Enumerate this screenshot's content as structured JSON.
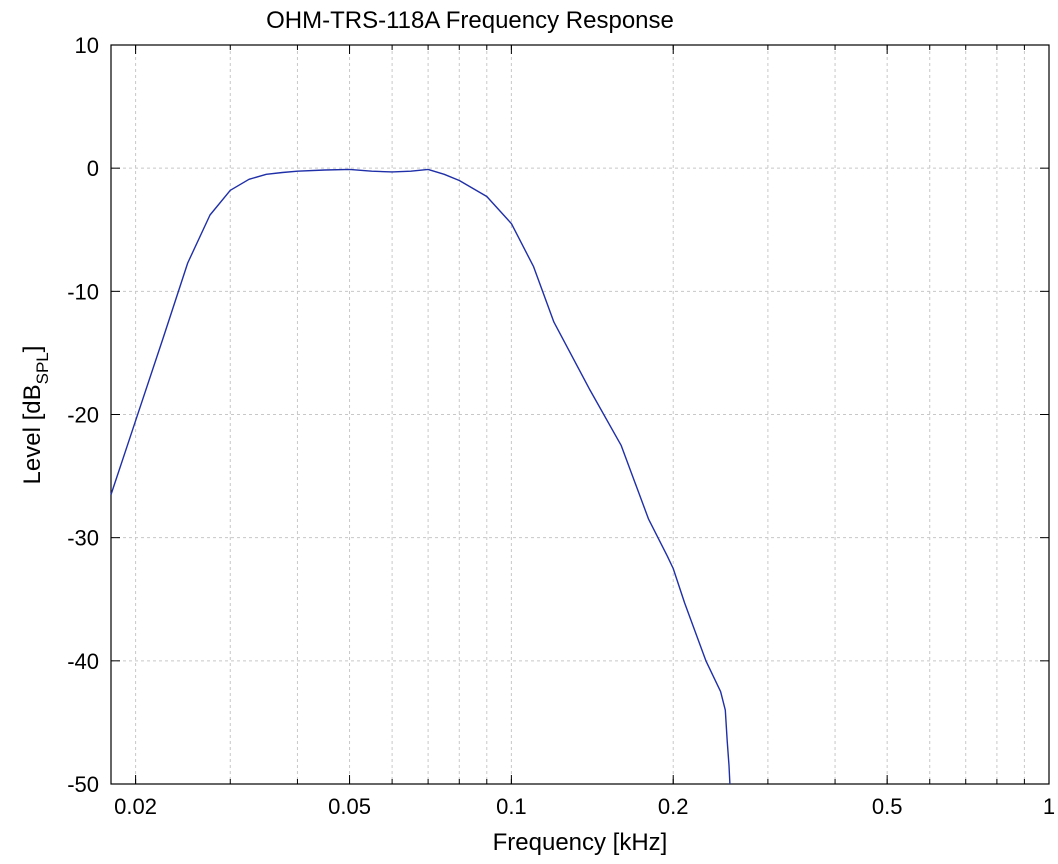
{
  "chart_data": {
    "type": "line",
    "title": "OHM-TRS-118A Frequency Response",
    "xlabel": "Frequency [kHz]",
    "ylabel": {
      "main": "Level [dB",
      "sub": "SPL",
      "end": "]"
    },
    "x_scale": "log",
    "xlim": [
      0.018,
      1
    ],
    "ylim": [
      -50,
      10
    ],
    "x_ticks": [
      0.02,
      0.05,
      0.1,
      0.2,
      0.5,
      1
    ],
    "x_tick_labels": [
      "0.02",
      "0.05",
      "0.1",
      "0.2",
      "0.5",
      "1"
    ],
    "y_ticks": [
      10,
      0,
      -10,
      -20,
      -30,
      -40,
      -50
    ],
    "y_tick_labels": [
      "10",
      "0",
      "-10",
      "-20",
      "-30",
      "-40",
      "-50"
    ],
    "grid": true,
    "line_color": "#1f2fa8",
    "grid_color": "#c8c8c8",
    "series": [
      {
        "x": [
          0.018,
          0.02,
          0.0225,
          0.025,
          0.0275,
          0.03,
          0.0325,
          0.035,
          0.0375,
          0.04,
          0.045,
          0.05,
          0.055,
          0.06,
          0.065,
          0.07,
          0.075,
          0.08,
          0.09,
          0.1,
          0.11,
          0.12,
          0.14,
          0.16,
          0.18,
          0.195,
          0.2,
          0.21,
          0.23,
          0.245,
          0.25,
          0.252,
          0.254,
          0.255
        ],
        "y": [
          -26.5,
          -20.5,
          -13.8,
          -7.7,
          -3.8,
          -1.8,
          -0.9,
          -0.5,
          -0.35,
          -0.25,
          -0.15,
          -0.1,
          -0.25,
          -0.3,
          -0.25,
          -0.1,
          -0.5,
          -1.0,
          -2.3,
          -4.5,
          -8.0,
          -12.5,
          -18.0,
          -22.5,
          -28.5,
          -31.5,
          -32.5,
          -35.3,
          -40.0,
          -42.5,
          -44.0,
          -46.5,
          -48.5,
          -50
        ]
      }
    ]
  }
}
